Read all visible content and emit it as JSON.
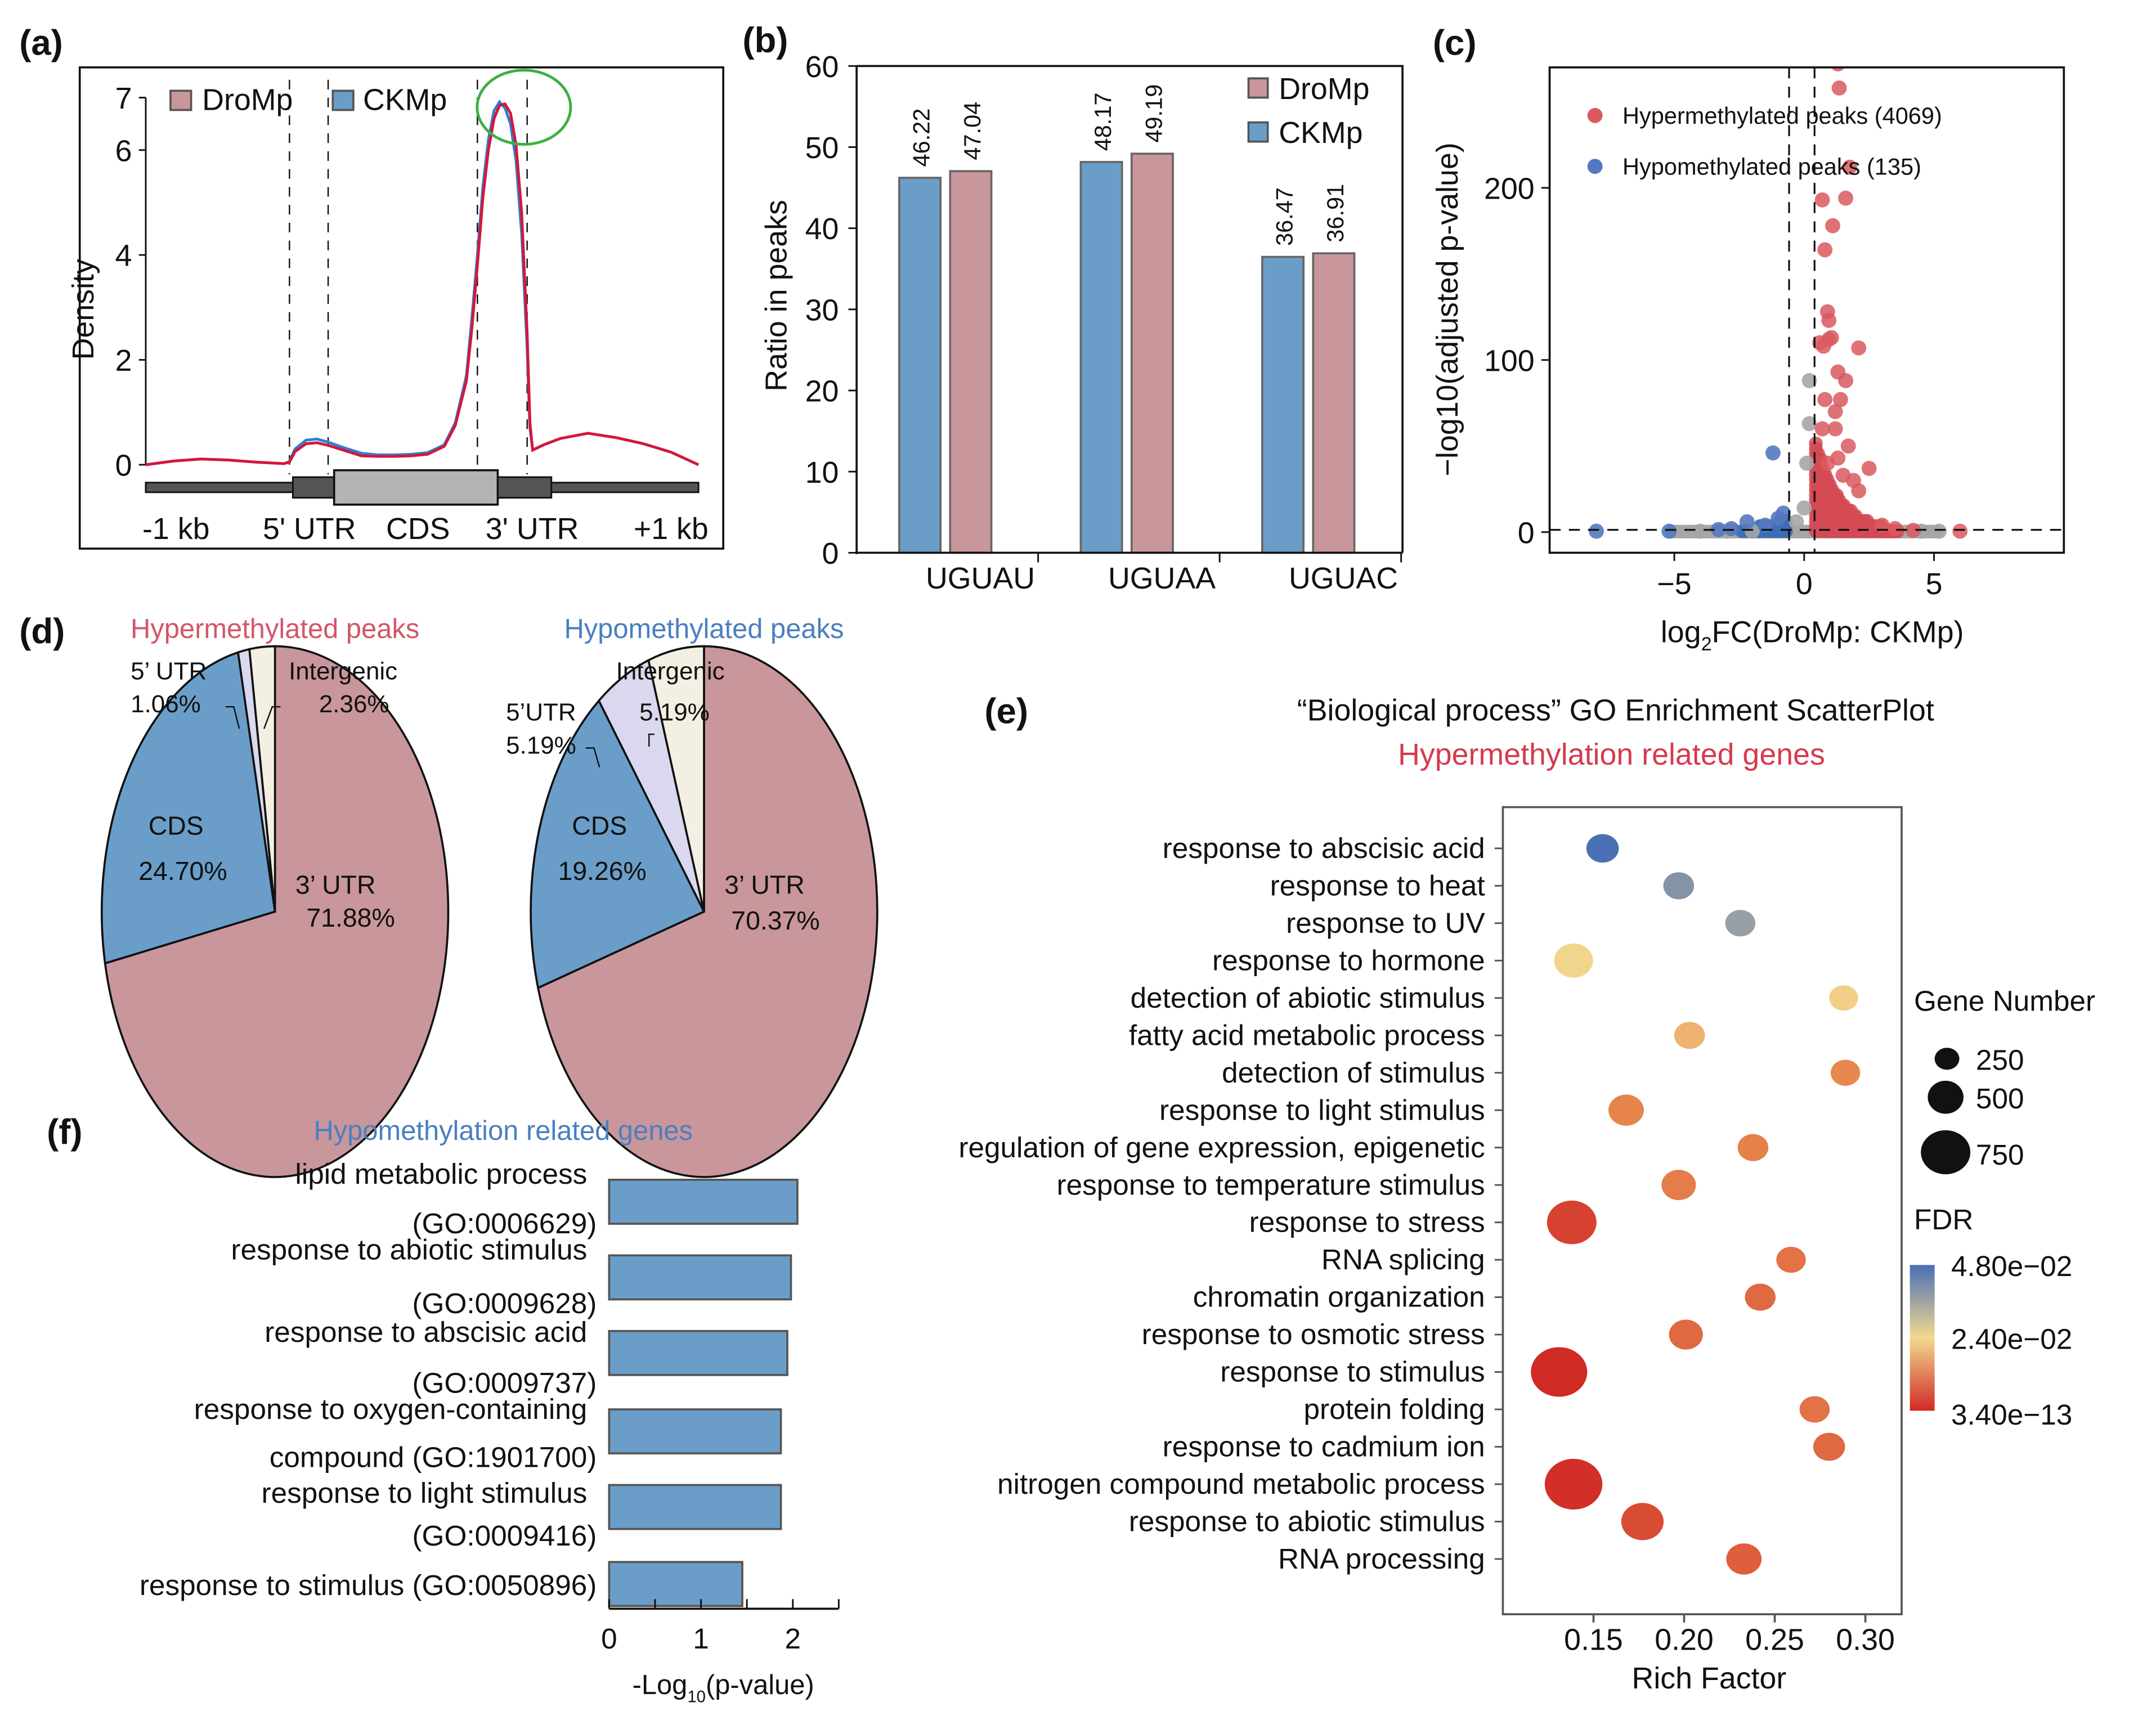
{
  "figure": {
    "panels": [
      "(a)",
      "(b)",
      "(c)",
      "(d)",
      "(e)",
      "(f)"
    ]
  },
  "colors": {
    "dromp": "#c9969b",
    "ckmp": "#6a9ec9",
    "hyper_red": "#d34a55",
    "hypo_blue": "#3b6eb8",
    "nonsig_grey": "#a6a6a6",
    "line_red": "#d6163a",
    "line_blue": "#2f7fd0",
    "hyper_title": "#d2566a",
    "hypo_title": "#4a7fc0",
    "pie_3utr": "#c9969b",
    "pie_cds": "#6a9ec9",
    "pie_5utr": "#d9d8ee",
    "pie_intergenic": "#f4efe3",
    "highlight_circle": "#3cb043",
    "fdr_high": "#4a6fb5",
    "fdr_mid": "#f3d98f",
    "fdr_low": "#d02a25"
  },
  "chart_data": [
    {
      "id": "a",
      "type": "line",
      "panel_label": "(a)",
      "ylabel": "Density",
      "yticks": [
        "0",
        "2",
        "4",
        "6",
        "7"
      ],
      "ytick_values": [
        0,
        2,
        4,
        6,
        7
      ],
      "ylim": [
        0,
        7
      ],
      "xlim": [
        0,
        100
      ],
      "x_region_labels": [
        "-1 kb",
        "5' UTR",
        "CDS",
        "3' UTR",
        "+1 kb"
      ],
      "region_boundaries": [
        26,
        33,
        60,
        69
      ],
      "legend": [
        "DroMp",
        "CKMp"
      ],
      "legend_placement": "top-left",
      "annotation": "green circle around the 3' UTR peak",
      "series": [
        {
          "name": "DroMp",
          "x": [
            0,
            5,
            10,
            15,
            20,
            25,
            26,
            27,
            29,
            31,
            33,
            36,
            39,
            42,
            45,
            48,
            51,
            54,
            56,
            58,
            59,
            60,
            61,
            62,
            63,
            64,
            65,
            66,
            67,
            68,
            69,
            69.5,
            70,
            72,
            75,
            80,
            85,
            90,
            95,
            100
          ],
          "y": [
            0.0,
            0.07,
            0.11,
            0.09,
            0.05,
            0.02,
            0.05,
            0.25,
            0.4,
            0.42,
            0.37,
            0.27,
            0.17,
            0.16,
            0.16,
            0.17,
            0.2,
            0.35,
            0.75,
            1.6,
            2.6,
            3.8,
            5.1,
            6.0,
            6.6,
            6.85,
            6.88,
            6.7,
            6.1,
            4.8,
            2.5,
            0.8,
            0.28,
            0.38,
            0.5,
            0.6,
            0.52,
            0.4,
            0.24,
            0.0
          ]
        },
        {
          "name": "CKMp",
          "x": [
            0,
            5,
            10,
            15,
            20,
            25,
            26,
            27,
            29,
            31,
            33,
            36,
            39,
            42,
            45,
            48,
            51,
            54,
            56,
            58,
            59,
            60,
            61,
            62,
            63,
            64,
            65,
            66,
            67,
            68,
            69,
            69.5,
            70,
            72,
            75,
            80,
            85,
            90,
            95,
            100
          ],
          "y": [
            0.0,
            0.07,
            0.11,
            0.09,
            0.05,
            0.02,
            0.06,
            0.3,
            0.47,
            0.49,
            0.43,
            0.32,
            0.22,
            0.19,
            0.19,
            0.2,
            0.23,
            0.38,
            0.8,
            1.7,
            2.8,
            4.0,
            5.3,
            6.2,
            6.75,
            6.92,
            6.8,
            6.5,
            5.8,
            4.4,
            2.2,
            0.7,
            0.28,
            0.38,
            0.5,
            0.6,
            0.52,
            0.4,
            0.24,
            0.0
          ]
        }
      ]
    },
    {
      "id": "b",
      "type": "bar",
      "panel_label": "(b)",
      "categories": [
        "UGUAU",
        "UGUAA",
        "UGUAC"
      ],
      "series": [
        {
          "name": "CKMp",
          "values": [
            46.22,
            48.17,
            36.47
          ]
        },
        {
          "name": "DroMp",
          "values": [
            47.04,
            49.19,
            36.91
          ]
        }
      ],
      "value_labels": {
        "CKMp": [
          "46.22",
          "48.17",
          "36.47"
        ],
        "DroMp": [
          "47.04",
          "49.19",
          "36.91"
        ]
      },
      "legend": [
        "DroMp",
        "CKMp"
      ],
      "legend_placement": "top-right",
      "ylabel": "Ratio in peaks",
      "xlabel": "",
      "ylim": [
        0,
        60
      ],
      "yticks": [
        "0",
        "10",
        "20",
        "30",
        "40",
        "50",
        "60"
      ],
      "ytick_values": [
        0,
        10,
        20,
        30,
        40,
        50,
        60
      ]
    },
    {
      "id": "c",
      "type": "scatter",
      "panel_label": "(c)",
      "title": "",
      "xlabel_main": "log",
      "xlabel_sub": "2",
      "xlabel_rest": "FC(DroMp: CKMp)",
      "ylabel": "−log10(adjusted p-value)",
      "xlim": [
        -9.8,
        10
      ],
      "ylim": [
        -12,
        270
      ],
      "xticks": [
        "−5",
        "0",
        "5"
      ],
      "xtick_values": [
        -5,
        0,
        5
      ],
      "yticks": [
        "0",
        "100",
        "200"
      ],
      "ytick_values": [
        0,
        100,
        200
      ],
      "thresholds": {
        "x": [
          -0.58,
          0.4
        ],
        "y": 1.3
      },
      "legend": [
        {
          "label": "Hypermethylated peaks (4069)",
          "group": "hyper"
        },
        {
          "label": "Hypomethylated peaks (135)",
          "group": "hypo"
        }
      ],
      "legend_placement": "top-left",
      "highlighted_points": {
        "hyper": [
          [
            1.3,
            272
          ],
          [
            1.35,
            258
          ],
          [
            1.75,
            212
          ],
          [
            0.7,
            193
          ],
          [
            1.6,
            194
          ],
          [
            1.1,
            178
          ],
          [
            0.8,
            164
          ],
          [
            0.9,
            128
          ],
          [
            0.95,
            123
          ],
          [
            0.95,
            112
          ],
          [
            0.75,
            108
          ],
          [
            1.05,
            113
          ],
          [
            2.1,
            107
          ],
          [
            0.6,
            110
          ],
          [
            1.3,
            93
          ],
          [
            1.6,
            88
          ],
          [
            1.4,
            77
          ],
          [
            0.8,
            77
          ],
          [
            1.2,
            70
          ],
          [
            1.2,
            60
          ],
          [
            0.7,
            60
          ],
          [
            1.7,
            50
          ],
          [
            1.3,
            43
          ],
          [
            2.5,
            37
          ],
          [
            1.9,
            30
          ],
          [
            2.1,
            24
          ],
          [
            1.5,
            33
          ],
          [
            0.9,
            40
          ],
          [
            6,
            0.5
          ],
          [
            4.2,
            1
          ],
          [
            3.5,
            2
          ],
          [
            3.0,
            4
          ]
        ],
        "hypo": [
          [
            -8,
            0.5
          ],
          [
            -5.2,
            0.5
          ],
          [
            -1.2,
            46
          ],
          [
            -2.2,
            6
          ],
          [
            -0.8,
            11
          ],
          [
            -1.5,
            4
          ],
          [
            -2.8,
            2
          ],
          [
            -1.0,
            8
          ],
          [
            -3.3,
            1.5
          ]
        ],
        "nonsig": [
          [
            0.2,
            88
          ],
          [
            0.2,
            63
          ],
          [
            0.1,
            40
          ],
          [
            0.0,
            14
          ],
          [
            -4,
            0.5
          ],
          [
            -3,
            0.5
          ],
          [
            -2,
            0.5
          ],
          [
            4.5,
            0.5
          ],
          [
            5.2,
            0.5
          ],
          [
            -0.3,
            6
          ]
        ]
      }
    },
    {
      "id": "d1",
      "type": "pie",
      "panel_label": "(d)",
      "title": "Hypermethylated peaks",
      "slices": [
        {
          "label": "3’ UTR",
          "value": 71.88,
          "text": "71.88%"
        },
        {
          "label": "CDS",
          "value": 24.7,
          "text": "24.70%"
        },
        {
          "label": "5’ UTR",
          "value": 1.06,
          "text": "1.06%"
        },
        {
          "label": "Intergenic",
          "value": 2.36,
          "text": "2.36%"
        }
      ]
    },
    {
      "id": "d2",
      "type": "pie",
      "title": "Hypomethylated peaks",
      "slices": [
        {
          "label": "3’ UTR",
          "value": 70.37,
          "text": "70.37%"
        },
        {
          "label": "CDS",
          "value": 19.26,
          "text": "19.26%"
        },
        {
          "label": "5’UTR",
          "value": 5.19,
          "text": "5.19%"
        },
        {
          "label": "Intergenic",
          "value": 5.19,
          "text": "5.19%"
        }
      ]
    },
    {
      "id": "e",
      "type": "scatter",
      "panel_label": "(e)",
      "title": "“Biological process” GO Enrichment ScatterPlot",
      "subtitle": "Hypermethylation related genes",
      "xlabel": "Rich Factor",
      "xlim": [
        0.1,
        0.32
      ],
      "xticks": [
        "0.15",
        "0.20",
        "0.25",
        "0.30"
      ],
      "xtick_values": [
        0.15,
        0.2,
        0.25,
        0.3
      ],
      "size_legend_title": "Gene Number",
      "size_legend": [
        250,
        500,
        750
      ],
      "color_legend_title": "FDR",
      "color_legend_labels": [
        "4.80e−02",
        "2.40e−02",
        "3.40e−13"
      ],
      "terms": [
        {
          "term": "response to abscisic acid",
          "rich_factor": 0.155,
          "gene_number": 200,
          "fdr": 0.048
        },
        {
          "term": "response to heat",
          "rich_factor": 0.197,
          "gene_number": 170,
          "fdr": 0.034
        },
        {
          "term": "response to UV",
          "rich_factor": 0.231,
          "gene_number": 160,
          "fdr": 0.03
        },
        {
          "term": "response to hormone",
          "rich_factor": 0.139,
          "gene_number": 340,
          "fdr": 0.016
        },
        {
          "term": "detection of abiotic stimulus",
          "rich_factor": 0.288,
          "gene_number": 140,
          "fdr": 0.014
        },
        {
          "term": "fatty acid metabolic process",
          "rich_factor": 0.203,
          "gene_number": 170,
          "fdr": 0.008
        },
        {
          "term": "detection of stimulus",
          "rich_factor": 0.289,
          "gene_number": 150,
          "fdr": 0.002
        },
        {
          "term": "response to light stimulus",
          "rich_factor": 0.168,
          "gene_number": 260,
          "fdr": 0.0005
        },
        {
          "term": "regulation of gene expression, epigenetic",
          "rich_factor": 0.238,
          "gene_number": 170,
          "fdr": 0.0003
        },
        {
          "term": "response to temperature stimulus",
          "rich_factor": 0.197,
          "gene_number": 240,
          "fdr": 0.0001
        },
        {
          "term": "response to stress",
          "rich_factor": 0.138,
          "gene_number": 650,
          "fdr": 1e-10
        },
        {
          "term": "RNA splicing",
          "rich_factor": 0.259,
          "gene_number": 150,
          "fdr": 1e-05
        },
        {
          "term": "chromatin organization",
          "rich_factor": 0.242,
          "gene_number": 170,
          "fdr": 1e-06
        },
        {
          "term": "response to osmotic stress",
          "rich_factor": 0.201,
          "gene_number": 230,
          "fdr": 1e-06
        },
        {
          "term": "response to stimulus",
          "rich_factor": 0.131,
          "gene_number": 900,
          "fdr": 3.4e-13
        },
        {
          "term": "protein folding",
          "rich_factor": 0.272,
          "gene_number": 160,
          "fdr": 1e-05
        },
        {
          "term": "response to cadmium ion",
          "rich_factor": 0.28,
          "gene_number": 190,
          "fdr": 1e-06
        },
        {
          "term": "nitrogen compound metabolic process",
          "rich_factor": 0.139,
          "gene_number": 950,
          "fdr": 1e-12
        },
        {
          "term": "response to abiotic stimulus",
          "rich_factor": 0.177,
          "gene_number": 430,
          "fdr": 1e-09
        },
        {
          "term": "RNA processing",
          "rich_factor": 0.233,
          "gene_number": 260,
          "fdr": 1e-07
        }
      ]
    },
    {
      "id": "f",
      "type": "bar",
      "orientation": "horizontal",
      "panel_label": "(f)",
      "title": "Hypomethylation related genes",
      "xlabel_main": "-Log",
      "xlabel_sub": "10",
      "xlabel_rest": "(p-value)",
      "xlim": [
        0,
        2.5
      ],
      "xticks": [
        "0",
        "1",
        "2"
      ],
      "xtick_values": [
        0,
        1,
        2
      ],
      "categories": [
        [
          "lipid metabolic process",
          "(GO:0006629)"
        ],
        [
          "response to abiotic stimulus",
          "(GO:0009628)"
        ],
        [
          "response to abscisic acid",
          "(GO:0009737)"
        ],
        [
          "response to oxygen-containing",
          "compound (GO:1901700)"
        ],
        [
          "response to light stimulus",
          "(GO:0009416)"
        ],
        [
          "response to stimulus (GO:0050896)"
        ]
      ],
      "values": [
        2.05,
        1.98,
        1.94,
        1.87,
        1.87,
        1.45
      ]
    }
  ]
}
